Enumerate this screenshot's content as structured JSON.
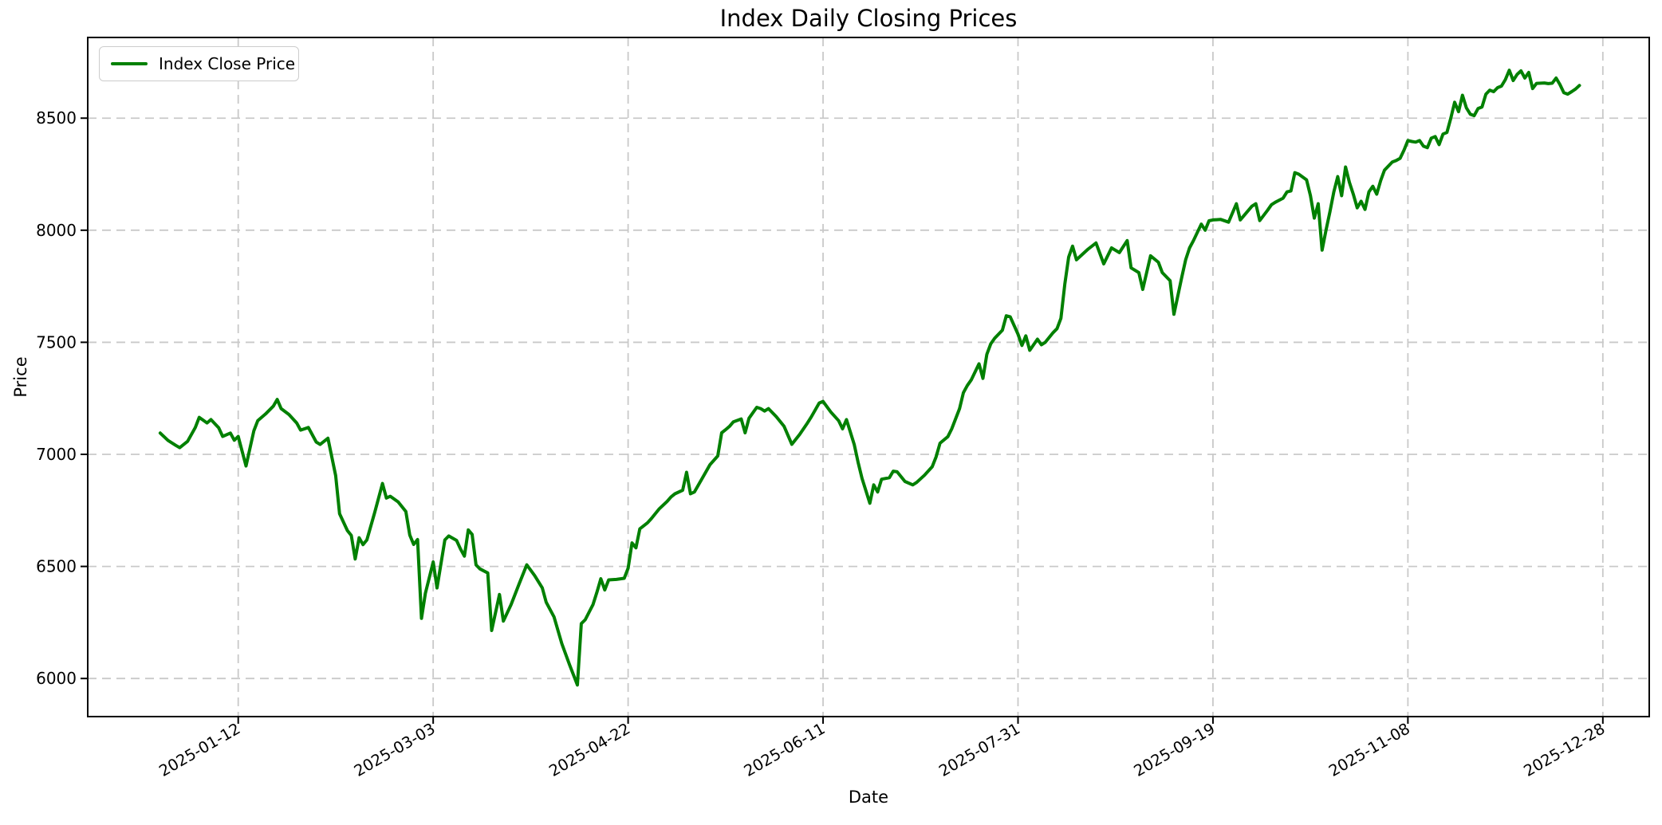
{
  "chart_data": {
    "type": "line",
    "title": "Index Daily Closing Prices",
    "xlabel": "Date",
    "ylabel": "Price",
    "series_name": "Index Close Price",
    "line_color": "#008000",
    "background_color": "#ffffff",
    "grid": true,
    "grid_color": "#c9c9c9",
    "grid_style": "dashed",
    "legend_position": "upper left",
    "x_unit": "days since first data point",
    "x_tick_days": [
      20,
      70,
      120,
      170,
      220,
      270,
      320,
      370
    ],
    "x_tick_labels": [
      "2025-01-12",
      "2025-03-03",
      "2025-04-22",
      "2025-06-11",
      "2025-07-31",
      "2025-09-19",
      "2025-11-08",
      "2025-12-28"
    ],
    "x_tick_rotation_deg": 30,
    "y_ticks": [
      6000,
      6500,
      7000,
      7500,
      8000,
      8500
    ],
    "xlim_days": [
      -18.6,
      381.9
    ],
    "ylim": [
      5830,
      8860
    ],
    "points": [
      [
        0,
        7095
      ],
      [
        2,
        7062
      ],
      [
        4,
        7040
      ],
      [
        5,
        7030
      ],
      [
        7,
        7058
      ],
      [
        9,
        7120
      ],
      [
        10,
        7165
      ],
      [
        12,
        7140
      ],
      [
        13,
        7155
      ],
      [
        15,
        7118
      ],
      [
        16,
        7080
      ],
      [
        18,
        7095
      ],
      [
        19,
        7063
      ],
      [
        20,
        7080
      ],
      [
        22,
        6948
      ],
      [
        24,
        7105
      ],
      [
        25,
        7150
      ],
      [
        27,
        7180
      ],
      [
        29,
        7215
      ],
      [
        30,
        7245
      ],
      [
        31,
        7204
      ],
      [
        33,
        7178
      ],
      [
        35,
        7140
      ],
      [
        36,
        7108
      ],
      [
        38,
        7120
      ],
      [
        40,
        7055
      ],
      [
        41,
        7044
      ],
      [
        43,
        7072
      ],
      [
        45,
        6905
      ],
      [
        46,
        6735
      ],
      [
        48,
        6660
      ],
      [
        49,
        6638
      ],
      [
        50,
        6533
      ],
      [
        51,
        6628
      ],
      [
        52,
        6597
      ],
      [
        53,
        6618
      ],
      [
        55,
        6740
      ],
      [
        57,
        6870
      ],
      [
        58,
        6805
      ],
      [
        59,
        6813
      ],
      [
        61,
        6788
      ],
      [
        63,
        6745
      ],
      [
        64,
        6640
      ],
      [
        65,
        6598
      ],
      [
        66,
        6620
      ],
      [
        67,
        6268
      ],
      [
        68,
        6380
      ],
      [
        70,
        6520
      ],
      [
        71,
        6404
      ],
      [
        73,
        6618
      ],
      [
        74,
        6636
      ],
      [
        76,
        6616
      ],
      [
        77,
        6578
      ],
      [
        78,
        6546
      ],
      [
        79,
        6663
      ],
      [
        80,
        6643
      ],
      [
        81,
        6507
      ],
      [
        82,
        6489
      ],
      [
        84,
        6471
      ],
      [
        85,
        6214
      ],
      [
        87,
        6375
      ],
      [
        88,
        6256
      ],
      [
        90,
        6330
      ],
      [
        92,
        6420
      ],
      [
        94,
        6507
      ],
      [
        96,
        6460
      ],
      [
        98,
        6404
      ],
      [
        99,
        6340
      ],
      [
        101,
        6275
      ],
      [
        103,
        6155
      ],
      [
        105,
        6060
      ],
      [
        107,
        5971
      ],
      [
        108,
        6245
      ],
      [
        109,
        6262
      ],
      [
        111,
        6330
      ],
      [
        112,
        6385
      ],
      [
        113,
        6445
      ],
      [
        114,
        6395
      ],
      [
        115,
        6440
      ],
      [
        117,
        6442
      ],
      [
        119,
        6447
      ],
      [
        120,
        6492
      ],
      [
        121,
        6605
      ],
      [
        122,
        6583
      ],
      [
        123,
        6668
      ],
      [
        125,
        6695
      ],
      [
        126,
        6714
      ],
      [
        128,
        6757
      ],
      [
        130,
        6790
      ],
      [
        131,
        6810
      ],
      [
        132,
        6824
      ],
      [
        134,
        6840
      ],
      [
        135,
        6920
      ],
      [
        136,
        6824
      ],
      [
        137,
        6832
      ],
      [
        139,
        6893
      ],
      [
        141,
        6954
      ],
      [
        143,
        6993
      ],
      [
        144,
        7096
      ],
      [
        145,
        7110
      ],
      [
        146,
        7125
      ],
      [
        147,
        7145
      ],
      [
        149,
        7158
      ],
      [
        150,
        7096
      ],
      [
        151,
        7161
      ],
      [
        153,
        7210
      ],
      [
        154,
        7204
      ],
      [
        155,
        7193
      ],
      [
        156,
        7204
      ],
      [
        158,
        7168
      ],
      [
        160,
        7125
      ],
      [
        162,
        7045
      ],
      [
        164,
        7089
      ],
      [
        166,
        7140
      ],
      [
        167,
        7168
      ],
      [
        169,
        7229
      ],
      [
        170,
        7236
      ],
      [
        172,
        7189
      ],
      [
        174,
        7150
      ],
      [
        175,
        7114
      ],
      [
        176,
        7155
      ],
      [
        178,
        7043
      ],
      [
        179,
        6964
      ],
      [
        180,
        6893
      ],
      [
        182,
        6782
      ],
      [
        183,
        6864
      ],
      [
        184,
        6832
      ],
      [
        185,
        6889
      ],
      [
        187,
        6896
      ],
      [
        188,
        6925
      ],
      [
        189,
        6922
      ],
      [
        191,
        6879
      ],
      [
        193,
        6864
      ],
      [
        194,
        6875
      ],
      [
        196,
        6907
      ],
      [
        198,
        6945
      ],
      [
        199,
        6989
      ],
      [
        200,
        7050
      ],
      [
        202,
        7079
      ],
      [
        203,
        7114
      ],
      [
        205,
        7204
      ],
      [
        206,
        7275
      ],
      [
        207,
        7307
      ],
      [
        208,
        7332
      ],
      [
        210,
        7404
      ],
      [
        211,
        7339
      ],
      [
        212,
        7446
      ],
      [
        213,
        7493
      ],
      [
        214,
        7518
      ],
      [
        216,
        7554
      ],
      [
        217,
        7618
      ],
      [
        218,
        7614
      ],
      [
        220,
        7536
      ],
      [
        221,
        7486
      ],
      [
        222,
        7529
      ],
      [
        223,
        7464
      ],
      [
        225,
        7514
      ],
      [
        226,
        7489
      ],
      [
        227,
        7500
      ],
      [
        229,
        7543
      ],
      [
        230,
        7561
      ],
      [
        231,
        7607
      ],
      [
        232,
        7760
      ],
      [
        233,
        7880
      ],
      [
        234,
        7929
      ],
      [
        235,
        7868
      ],
      [
        237,
        7900
      ],
      [
        238,
        7916
      ],
      [
        240,
        7943
      ],
      [
        242,
        7850
      ],
      [
        244,
        7921
      ],
      [
        246,
        7900
      ],
      [
        248,
        7954
      ],
      [
        249,
        7832
      ],
      [
        251,
        7811
      ],
      [
        252,
        7736
      ],
      [
        254,
        7886
      ],
      [
        256,
        7857
      ],
      [
        257,
        7811
      ],
      [
        259,
        7775
      ],
      [
        260,
        7625
      ],
      [
        262,
        7790
      ],
      [
        263,
        7868
      ],
      [
        264,
        7921
      ],
      [
        265,
        7954
      ],
      [
        267,
        8027
      ],
      [
        268,
        8000
      ],
      [
        269,
        8042
      ],
      [
        270,
        8046
      ],
      [
        272,
        8048
      ],
      [
        274,
        8036
      ],
      [
        276,
        8118
      ],
      [
        277,
        8046
      ],
      [
        280,
        8107
      ],
      [
        281,
        8118
      ],
      [
        282,
        8043
      ],
      [
        284,
        8089
      ],
      [
        285,
        8114
      ],
      [
        286,
        8125
      ],
      [
        288,
        8143
      ],
      [
        289,
        8171
      ],
      [
        290,
        8175
      ],
      [
        291,
        8257
      ],
      [
        292,
        8250
      ],
      [
        294,
        8225
      ],
      [
        295,
        8154
      ],
      [
        296,
        8054
      ],
      [
        297,
        8118
      ],
      [
        298,
        7911
      ],
      [
        299,
        8000
      ],
      [
        300,
        8082
      ],
      [
        301,
        8171
      ],
      [
        302,
        8239
      ],
      [
        303,
        8154
      ],
      [
        304,
        8282
      ],
      [
        305,
        8214
      ],
      [
        306,
        8161
      ],
      [
        307,
        8100
      ],
      [
        308,
        8129
      ],
      [
        309,
        8093
      ],
      [
        310,
        8171
      ],
      [
        311,
        8196
      ],
      [
        312,
        8161
      ],
      [
        313,
        8221
      ],
      [
        314,
        8268
      ],
      [
        316,
        8304
      ],
      [
        317,
        8311
      ],
      [
        318,
        8321
      ],
      [
        319,
        8357
      ],
      [
        320,
        8400
      ],
      [
        321,
        8396
      ],
      [
        322,
        8393
      ],
      [
        323,
        8400
      ],
      [
        324,
        8375
      ],
      [
        325,
        8368
      ],
      [
        326,
        8411
      ],
      [
        327,
        8418
      ],
      [
        328,
        8382
      ],
      [
        329,
        8429
      ],
      [
        330,
        8436
      ],
      [
        331,
        8500
      ],
      [
        332,
        8571
      ],
      [
        333,
        8529
      ],
      [
        334,
        8602
      ],
      [
        335,
        8546
      ],
      [
        336,
        8518
      ],
      [
        337,
        8511
      ],
      [
        338,
        8543
      ],
      [
        339,
        8550
      ],
      [
        340,
        8607
      ],
      [
        341,
        8625
      ],
      [
        342,
        8618
      ],
      [
        343,
        8636
      ],
      [
        344,
        8643
      ],
      [
        345,
        8672
      ],
      [
        346,
        8714
      ],
      [
        347,
        8668
      ],
      [
        348,
        8695
      ],
      [
        349,
        8711
      ],
      [
        350,
        8679
      ],
      [
        351,
        8704
      ],
      [
        352,
        8632
      ],
      [
        353,
        8655
      ],
      [
        355,
        8657
      ],
      [
        356,
        8654
      ],
      [
        357,
        8656
      ],
      [
        358,
        8679
      ],
      [
        359,
        8650
      ],
      [
        360,
        8614
      ],
      [
        361,
        8607
      ],
      [
        362,
        8618
      ],
      [
        363,
        8630
      ],
      [
        364,
        8646
      ]
    ]
  }
}
